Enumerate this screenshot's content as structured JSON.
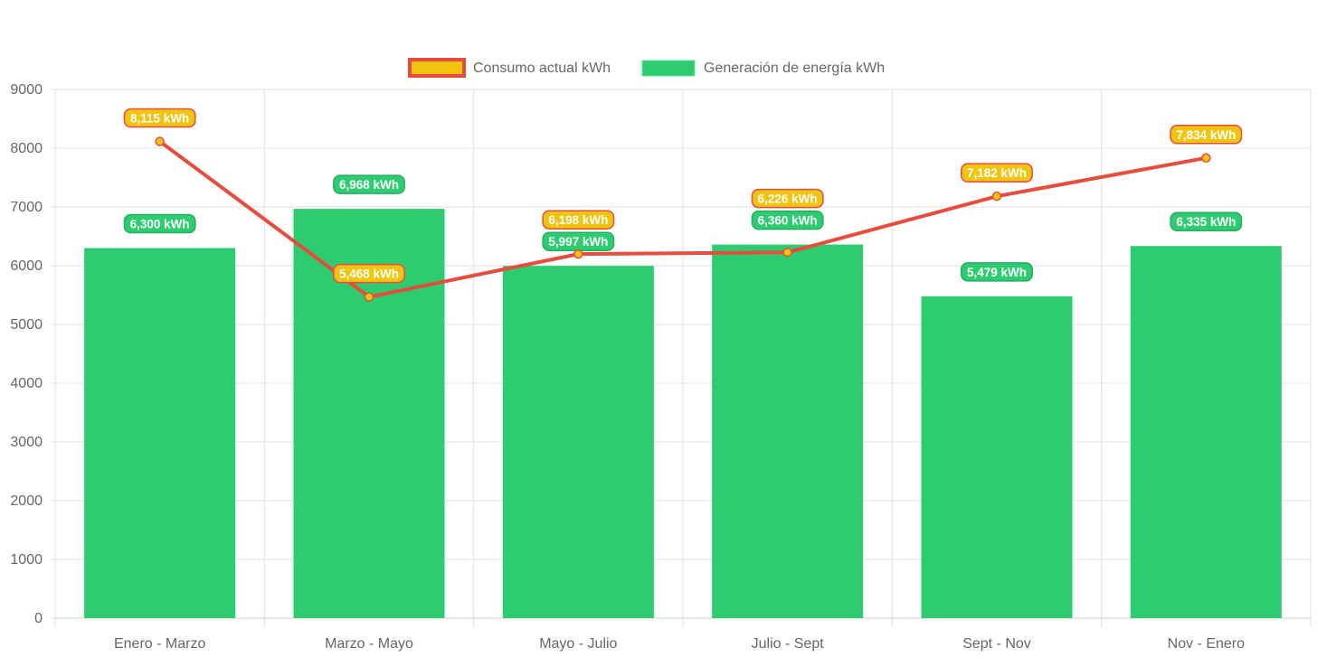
{
  "chart_data": {
    "type": "bar",
    "categories": [
      "Enero - Marzo",
      "Marzo - Mayo",
      "Mayo - Julio",
      "Julio - Sept",
      "Sept - Nov",
      "Nov - Enero"
    ],
    "series": [
      {
        "name": "Consumo actual kWh",
        "type": "line",
        "values": [
          8115,
          5468,
          6198,
          6226,
          7182,
          7834
        ],
        "labels": [
          "8,115 kWh",
          "5,468 kWh",
          "6,198 kWh",
          "6,226 kWh",
          "7,182 kWh",
          "7,834 kWh"
        ],
        "color": "#f1c40f",
        "border": "#e74c3c"
      },
      {
        "name": "Generación de energía kWh",
        "type": "bar",
        "values": [
          6300,
          6968,
          5997,
          6360,
          5479,
          6335
        ],
        "labels": [
          "6,300 kWh",
          "6,968 kWh",
          "5,997 kWh",
          "6,360 kWh",
          "5,479 kWh",
          "6,335 kWh"
        ],
        "color": "#2ecc71"
      }
    ],
    "ylim": [
      0,
      9000
    ],
    "yticks": [
      "0",
      "1000",
      "2000",
      "3000",
      "4000",
      "5000",
      "6000",
      "7000",
      "8000",
      "9000"
    ],
    "grid": true,
    "legend": "top"
  }
}
